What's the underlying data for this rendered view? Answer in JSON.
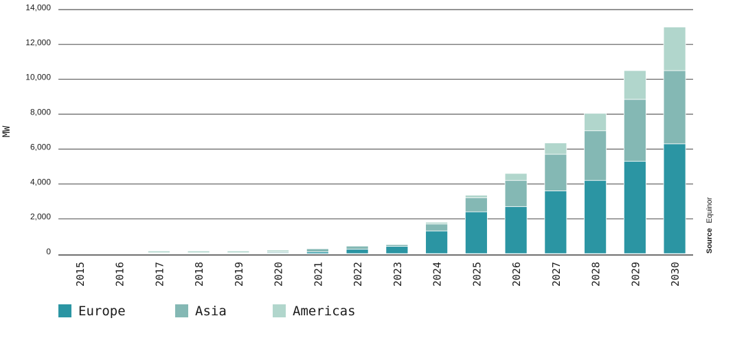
{
  "chart_data": {
    "type": "bar",
    "stacked": true,
    "ylabel": "MW",
    "ylim": [
      0,
      14000
    ],
    "yticks": [
      "0",
      "2,000",
      "4,000",
      "6,000",
      "8,000",
      "10,000",
      "12,000",
      "14,000"
    ],
    "grid": true,
    "legend_position": "bottom-left",
    "categories": [
      "2015",
      "2016",
      "2017",
      "2018",
      "2019",
      "2020",
      "2021",
      "2022",
      "2023",
      "2024",
      "2025",
      "2026",
      "2027",
      "2028",
      "2029",
      "2030"
    ],
    "series": [
      {
        "name": "Europe",
        "color": "#2b95a3",
        "values": [
          0,
          0,
          20,
          20,
          20,
          40,
          100,
          250,
          420,
          1300,
          2400,
          2700,
          3600,
          4200,
          5300,
          6300
        ]
      },
      {
        "name": "Asia",
        "color": "#84b8b4",
        "values": [
          0,
          0,
          30,
          30,
          30,
          60,
          180,
          180,
          100,
          400,
          800,
          1500,
          2100,
          2850,
          3550,
          4200
        ]
      },
      {
        "name": "Americas",
        "color": "#b1d6cc",
        "values": [
          0,
          0,
          100,
          100,
          100,
          100,
          30,
          30,
          30,
          100,
          150,
          400,
          650,
          1000,
          1650,
          2500
        ]
      }
    ],
    "source_label": "Source",
    "source_value": "Equinor"
  }
}
